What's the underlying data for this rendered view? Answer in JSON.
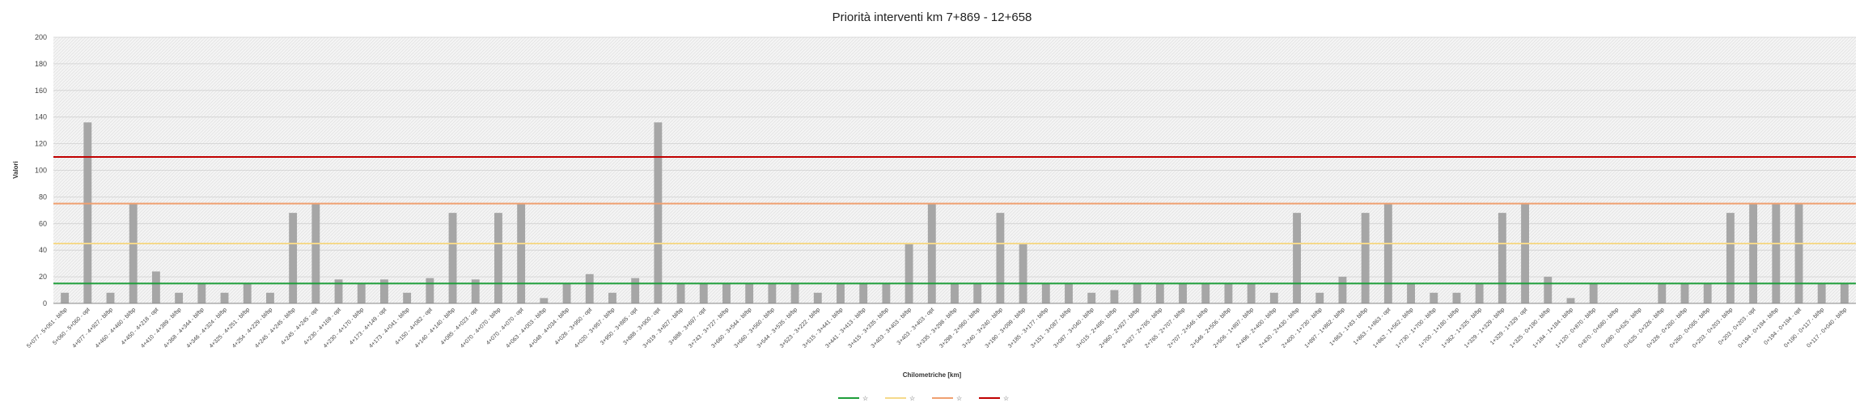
{
  "chart_data": {
    "type": "bar",
    "title": "Priorità interventi km 7+869 - 12+658",
    "xlabel": "Chilometriche [km]",
    "ylabel": "Valori",
    "ylim": [
      0,
      200
    ],
    "yticks": [
      0,
      20,
      40,
      60,
      80,
      100,
      120,
      140,
      160,
      180,
      200
    ],
    "grid": true,
    "legend_position": "bottom",
    "bar_color": "#a6a6a6",
    "categories": [
      "5+077 - 5+061 - bl/bp",
      "5+060 - 5+060 - opt",
      "4+977 - 4+927 - bl/bp",
      "4+460 - 4+460 - bl/bp",
      "4+450 - 4+218 - opt",
      "4+410 - 4+389 - bl/bp",
      "4+368 - 4+344 - bl/bp",
      "4+346 - 4+324 - bl/bp",
      "4+325 - 4+251 - bl/bp",
      "4+254 - 4+229 - bl/bp",
      "4+245 - 4+245 - bl/bp",
      "4+245 - 4+245 - opt",
      "4+230 - 4+169 - opt",
      "4+230 - 4+170 - bl/bp",
      "4+173 - 4+149 - opt",
      "4+173 - 4+041 - bl/bp",
      "4+150 - 4+082 - opt",
      "4+140 - 4+140 - bl/bp",
      "4+085 - 4+023 - opt",
      "4+070 - 4+070 - bl/bp",
      "4+070 - 4+070 - opt",
      "4+063 - 4+003 - bl/bp",
      "4+048 - 4+034 - bl/bp",
      "4+026 - 3+950 - opt",
      "4+020 - 3+957 - bl/bp",
      "3+950 - 3+885 - opt",
      "3+888 - 3+900 - opt",
      "3+919 - 3+827 - bl/bp",
      "3+888 - 3+697 - opt",
      "3+743 - 3+727 - bl/bp",
      "3+660 - 3+544 - bl/bp",
      "3+660 - 3+560 - bl/bp",
      "3+544 - 3+535 - bl/bp",
      "3+523 - 3+222 - bl/bp",
      "3+515 - 3+441 - bl/bp",
      "3+441 - 3+413 - bl/bp",
      "3+415 - 3+335 - bl/bp",
      "3+403 - 3+403 - bl/bp",
      "3+403 - 3+403 - opt",
      "3+335 - 3+298 - bl/bp",
      "3+298 - 2+960 - bl/bp",
      "3+240 - 3+240 - bl/bp",
      "3+190 - 3+099 - bl/bp",
      "3+185 - 3+177 - bl/bp",
      "3+151 - 3+087 - bl/bp",
      "3+087 - 3+040 - bl/bp",
      "3+015 - 2+495 - bl/bp",
      "2+960 - 2+927 - bl/bp",
      "2+927 - 2+765 - bl/bp",
      "2+765 - 2+707 - bl/bp",
      "2+707 - 2+546 - bl/bp",
      "2+546 - 2+506 - bl/bp",
      "2+506 - 1+897 - bl/bp",
      "2+496 - 2+400 - bl/bp",
      "2+430 - 2+430 - bl/bp",
      "2+400 - 1+730 - bl/bp",
      "1+897 - 1+862 - bl/bp",
      "1+863 - 1+83 - bl/bp",
      "1+863 - 1+863 - opt",
      "1+862 - 1+562 - bl/bp",
      "1+730 - 1+700 - bl/bp",
      "1+700 - 1+180 - bl/bp",
      "1+362 - 1+325 - bl/bp",
      "1+329 - 1+329 - bl/bp",
      "1+329 - 1+329 - opt",
      "1+325 - 0+190 - bl/bp",
      "1+184 - 1+184 - bl/bp",
      "1+120 - 0+870 - bl/bp",
      "0+870 - 0+680 - bl/bp",
      "0+680 - 0+625 - bl/bp",
      "0+625 - 0+326 - bl/bp",
      "0+326 - 0+260 - bl/bp",
      "0+260 - 0+065 - bl/bp",
      "0+203 - 0+203 - bl/bp",
      "0+203 - 0+203 - opt",
      "0+194 - 0+194 - bl/bp",
      "0+194 - 0+194 - opt",
      "0+190 - 0+117 - bl/bp",
      "0+117 - 0+040 - bl/bp"
    ],
    "values": [
      8,
      136,
      8,
      75,
      24,
      8,
      15,
      8,
      15,
      8,
      68,
      75,
      18,
      15,
      18,
      8,
      19,
      68,
      18,
      68,
      75,
      4,
      15,
      22,
      8,
      19,
      136,
      15,
      15,
      15,
      15,
      15,
      15,
      8,
      15,
      15,
      15,
      45,
      75,
      15,
      15,
      68,
      45,
      15,
      15,
      8,
      10,
      15,
      15,
      15,
      15,
      15,
      15,
      8,
      68,
      8,
      20,
      68,
      75,
      15,
      8,
      8,
      15,
      68,
      75,
      20,
      4,
      15,
      0,
      0,
      15,
      15,
      15,
      68,
      75,
      75,
      75,
      15,
      15
    ],
    "thresholds": [
      {
        "name": "☆",
        "value": 15,
        "color": "#1e9e3a"
      },
      {
        "name": "☆",
        "value": 45,
        "color": "#f5d98a"
      },
      {
        "name": "☆",
        "value": 75,
        "color": "#f0a070"
      },
      {
        "name": "☆",
        "value": 110,
        "color": "#c00000"
      }
    ]
  }
}
